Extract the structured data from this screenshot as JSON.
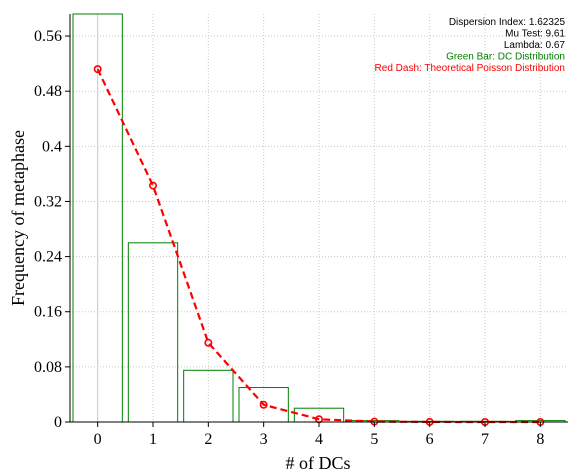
{
  "chart_data": {
    "type": "bar",
    "xlabel": "# of DCs",
    "ylabel": "Frequency of metaphase",
    "x_ticks": [
      "0",
      "1",
      "2",
      "3",
      "4",
      "5",
      "6",
      "7",
      "8"
    ],
    "y_ticks": [
      "0",
      "0.08",
      "0.16",
      "0.24",
      "0.32",
      "0.4",
      "0.48",
      "0.56"
    ],
    "xlim": [
      -0.5,
      8.5
    ],
    "ylim": [
      0,
      0.592
    ],
    "grid": true,
    "legend_position": "top-right",
    "annotations": [
      {
        "text": "Dispersion Index: 1.62325",
        "color": "#000000"
      },
      {
        "text": "Mu Test: 9.61",
        "color": "#000000"
      },
      {
        "text": "Lambda: 0.67",
        "color": "#000000"
      },
      {
        "text": "Green Bar: DC Distribution",
        "color": "#008000"
      },
      {
        "text": "Red Dash: Theoretical Poisson Distribution",
        "color": "#ff0000"
      }
    ],
    "series": [
      {
        "type": "bar",
        "color": "#008000",
        "x": [
          0,
          1,
          2,
          3,
          4,
          5,
          6,
          7,
          8
        ],
        "values": [
          0.592,
          0.26,
          0.075,
          0.05,
          0.02,
          0.002,
          0.001,
          0.001,
          0.002
        ]
      },
      {
        "type": "line",
        "style": "dashed",
        "color": "#ff0000",
        "x": [
          0,
          1,
          2,
          3,
          4,
          5,
          6,
          7,
          8
        ],
        "values": [
          0.512,
          0.343,
          0.115,
          0.025,
          0.004,
          0.0006,
          0.0001,
          0.0,
          0.0
        ]
      }
    ]
  }
}
